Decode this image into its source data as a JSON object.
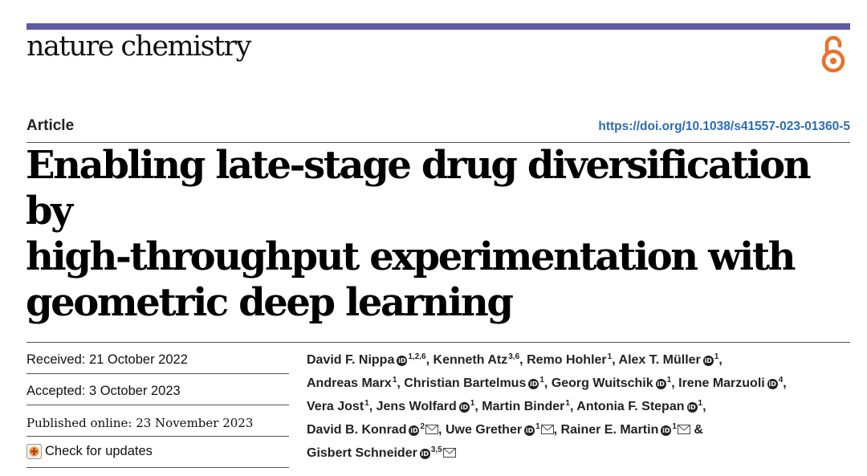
{
  "journal": "nature chemistry",
  "section": "Article",
  "doi": "https://doi.org/10.1038/s41557-023-01360-5",
  "title_lines": [
    "Enabling late-stage drug diversification by",
    "high-throughput experimentation with",
    "geometric deep learning"
  ],
  "dates": {
    "received": "Received: 21 October 2022",
    "accepted": "Accepted: 3 October 2023",
    "published": "Published online: 23 November 2023"
  },
  "check_updates": "Check for updates",
  "orcid_glyph": "iD",
  "authors": [
    {
      "name": "David F. Nippa",
      "orcid": true,
      "aff": "1,2,6",
      "mail": false,
      "sep": ","
    },
    {
      "name": "Kenneth Atz",
      "orcid": false,
      "aff": "3,6",
      "mail": false,
      "sep": ","
    },
    {
      "name": "Remo Hohler",
      "orcid": false,
      "aff": "1",
      "mail": false,
      "sep": ","
    },
    {
      "name": "Alex T. Müller",
      "orcid": true,
      "aff": "1",
      "mail": false,
      "sep": ","
    },
    {
      "name": "Andreas Marx",
      "orcid": false,
      "aff": "1",
      "mail": false,
      "sep": ","
    },
    {
      "name": "Christian Bartelmus",
      "orcid": true,
      "aff": "1",
      "mail": false,
      "sep": ","
    },
    {
      "name": "Georg Wuitschik",
      "orcid": true,
      "aff": "1",
      "mail": false,
      "sep": ","
    },
    {
      "name": "Irene Marzuoli",
      "orcid": true,
      "aff": "4",
      "mail": false,
      "sep": ","
    },
    {
      "name": "Vera Jost",
      "orcid": false,
      "aff": "1",
      "mail": false,
      "sep": ","
    },
    {
      "name": "Jens Wolfard",
      "orcid": true,
      "aff": "1",
      "mail": false,
      "sep": ","
    },
    {
      "name": "Martin Binder",
      "orcid": false,
      "aff": "1",
      "mail": false,
      "sep": ","
    },
    {
      "name": "Antonia F. Stepan",
      "orcid": true,
      "aff": "1",
      "mail": false,
      "sep": ","
    },
    {
      "name": "David B. Konrad",
      "orcid": true,
      "aff": "2",
      "mail": true,
      "sep": ","
    },
    {
      "name": "Uwe Grether",
      "orcid": true,
      "aff": "1",
      "mail": true,
      "sep": ","
    },
    {
      "name": "Rainer E. Martin",
      "orcid": true,
      "aff": "1",
      "mail": true,
      "sep": " &"
    },
    {
      "name": "Gisbert Schneider",
      "orcid": true,
      "aff": "3,5",
      "mail": true,
      "sep": ""
    }
  ],
  "colors": {
    "accent_bar": "#5f5aa2",
    "open_access": "#e8732a",
    "doi_link": "#2b6cb0"
  }
}
